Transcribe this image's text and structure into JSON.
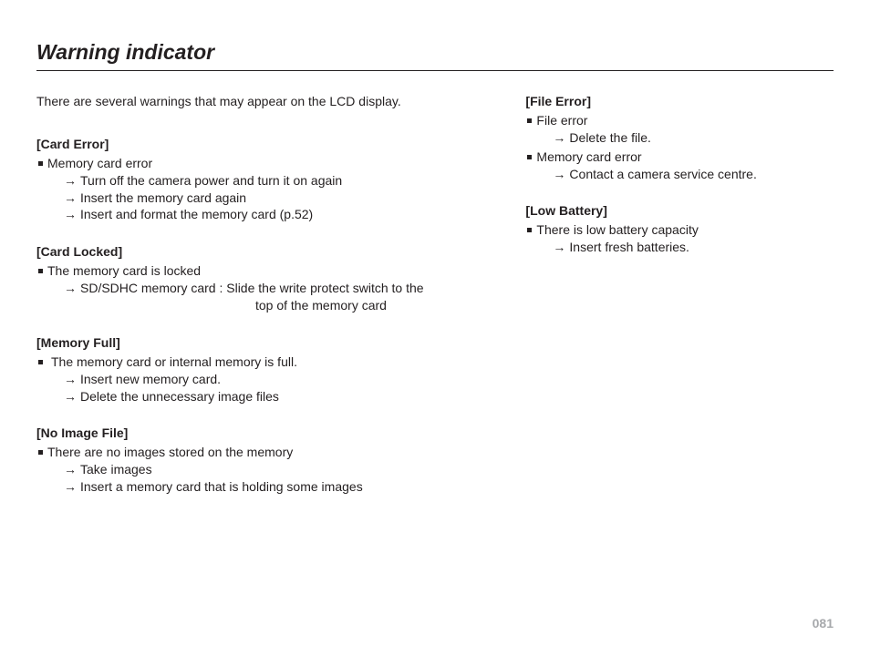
{
  "title": "Warning indicator",
  "intro": "There are several warnings that may appear on the LCD display.",
  "arrow": "→",
  "left": [
    {
      "header": "[Card Error]",
      "items": [
        {
          "cause": "Memory card error",
          "actions": [
            "Turn off the camera power and turn it on again",
            "Insert the memory card again",
            "Insert and format the memory card (p.52)"
          ]
        }
      ]
    },
    {
      "header": "[Card Locked]",
      "items": [
        {
          "cause": "The memory card is locked",
          "actions": [
            "SD/SDHC memory card : Slide the write protect switch to the"
          ],
          "hang": "top of the memory card"
        }
      ]
    },
    {
      "header": "[Memory Full]",
      "items": [
        {
          "cause": "The memory card or internal memory is full.",
          "spaced": true,
          "actions": [
            "Insert new memory card.",
            "Delete the unnecessary image files"
          ]
        }
      ]
    },
    {
      "header": "[No Image File]",
      "items": [
        {
          "cause": "There are no images stored on the memory",
          "actions": [
            "Take images",
            "Insert a memory card that is holding some images"
          ]
        }
      ]
    }
  ],
  "right": [
    {
      "header": "[File Error]",
      "items": [
        {
          "cause": "File error",
          "actions": [
            "Delete the file."
          ]
        },
        {
          "cause": "Memory card error",
          "actions": [
            "Contact a camera service centre."
          ]
        }
      ]
    },
    {
      "header": "[Low Battery]",
      "items": [
        {
          "cause": "There is low battery capacity",
          "actions": [
            "Insert fresh batteries."
          ]
        }
      ]
    }
  ],
  "page_number": "081"
}
